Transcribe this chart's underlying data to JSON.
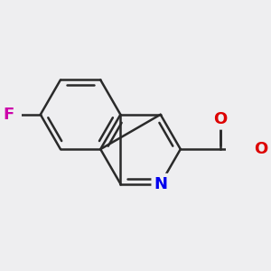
{
  "bg_color": "#eeeef0",
  "bond_color": "#2a2a2a",
  "bond_width": 1.8,
  "atom_colors": {
    "F": "#cc00aa",
    "N": "#0000ee",
    "O": "#dd0000",
    "C": "#2a2a2a"
  },
  "font_size": 13,
  "figsize": [
    3.0,
    3.0
  ],
  "dpi": 100,
  "BL": 0.55,
  "rot_deg": -30
}
